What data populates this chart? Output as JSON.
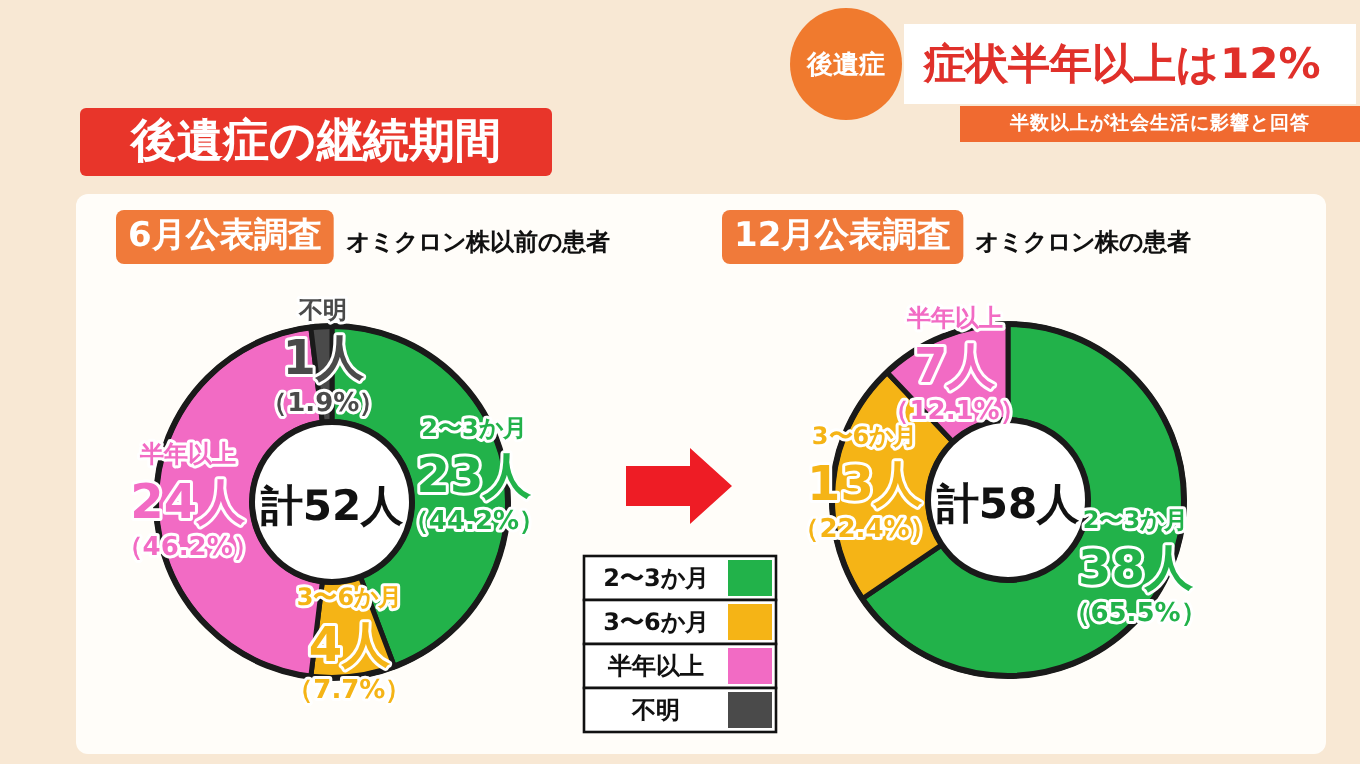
{
  "chart_data": [
    {
      "type": "other",
      "title": "後遺症の継続期間",
      "annotations": [
        "後遺症",
        "症状半年以上は12%",
        "半数以上が社会生活に影響と回答"
      ]
    },
    {
      "type": "donut",
      "title": "6月公表調査",
      "subtitle": "オミクロン株以前の患者",
      "categories": [
        "2〜3か月",
        "3〜6か月",
        "半年以上",
        "不明"
      ],
      "values": [
        23,
        4,
        24,
        1
      ],
      "value_labels": [
        "23人（44.2%）",
        "4人（7.7%）",
        "24人（46.2%）",
        "1人（1.9%）"
      ],
      "colors": [
        "#22b24a",
        "#f5b416",
        "#f26bc4",
        "#4a4a4a"
      ],
      "annotations": [
        "計52人"
      ],
      "legend": "right"
    },
    {
      "type": "donut",
      "title": "12月公表調査",
      "subtitle": "オミクロン株の患者",
      "categories": [
        "2〜3か月",
        "3〜6か月",
        "半年以上"
      ],
      "values": [
        38,
        13,
        7
      ],
      "value_labels": [
        "38人（65.5%）",
        "13人（22.4%）",
        "7人（12.1%）"
      ],
      "colors": [
        "#22b24a",
        "#f5b416",
        "#f26bc4"
      ],
      "annotations": [
        "計58人"
      ]
    }
  ]
}
